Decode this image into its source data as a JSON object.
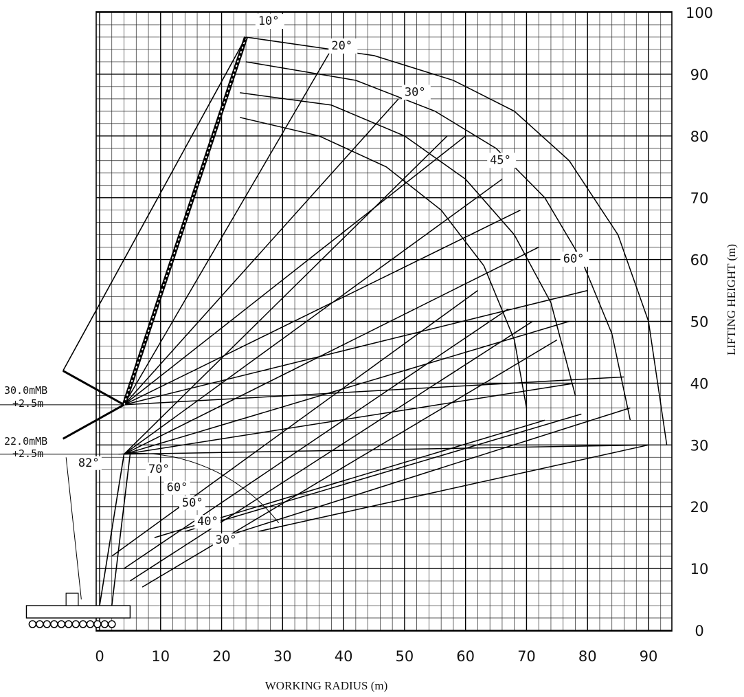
{
  "chart_data": {
    "type": "line",
    "xlabel": "WORKING RADIUS (m)",
    "ylabel": "LIFTING HEIGHT (m)",
    "xlim": [
      -15,
      92
    ],
    "ylim": [
      0,
      100
    ],
    "x_ticks": [
      0,
      10,
      20,
      30,
      40,
      50,
      60,
      70,
      80,
      90
    ],
    "x_tick_labels": [
      "0",
      "10",
      "20",
      "30",
      "40",
      "50",
      "60",
      "70",
      "80",
      "90"
    ],
    "y_ticks": [
      0,
      10,
      20,
      30,
      40,
      50,
      60,
      70,
      80,
      90,
      100
    ],
    "y_tick_labels": [
      "0",
      "10",
      "20",
      "30",
      "40",
      "50",
      "60",
      "70",
      "80",
      "90",
      "100"
    ],
    "grid": true,
    "main_boom_labels": [
      {
        "text": "30.0mMB",
        "height": 36.5
      },
      {
        "text": "+2.5m",
        "height": 36.5
      },
      {
        "text": "22.0mMB",
        "height": 28.5
      },
      {
        "text": "+2.5m",
        "height": 28.5
      }
    ],
    "boom_angle_labels": [
      {
        "text": "82°",
        "x": -3.5,
        "y": 26.5
      },
      {
        "text": "70°",
        "x": 8,
        "y": 25.5
      },
      {
        "text": "60°",
        "x": 11,
        "y": 22.5
      },
      {
        "text": "50°",
        "x": 13.5,
        "y": 20
      },
      {
        "text": "40°",
        "x": 16,
        "y": 17
      },
      {
        "text": "30°",
        "x": 19,
        "y": 14
      }
    ],
    "jib_offset_labels": [
      {
        "text": "10°",
        "x": 26,
        "y": 98
      },
      {
        "text": "20°",
        "x": 38,
        "y": 94
      },
      {
        "text": "30°",
        "x": 50,
        "y": 86.5
      },
      {
        "text": "45°",
        "x": 64,
        "y": 75.5
      },
      {
        "text": "60°",
        "x": 76,
        "y": 59.5
      }
    ],
    "series": [
      {
        "values": [
          [
            24,
            96
          ],
          [
            45,
            93
          ],
          [
            58,
            89
          ],
          [
            68,
            84
          ],
          [
            77,
            76
          ],
          [
            85,
            64
          ],
          [
            90,
            50
          ],
          [
            93,
            30
          ]
        ]
      },
      {
        "values": [
          [
            24,
            92
          ],
          [
            42,
            89
          ],
          [
            55,
            84
          ],
          [
            65,
            78
          ],
          [
            73,
            70
          ],
          [
            79,
            60
          ],
          [
            84,
            48
          ],
          [
            87,
            34
          ]
        ]
      },
      {
        "values": [
          [
            23,
            87
          ],
          [
            38,
            85
          ],
          [
            50,
            80
          ],
          [
            60,
            73
          ],
          [
            68,
            64
          ],
          [
            74,
            53
          ],
          [
            78,
            38
          ]
        ]
      },
      {
        "values": [
          [
            23,
            83
          ],
          [
            36,
            80
          ],
          [
            47,
            75
          ],
          [
            56,
            68
          ],
          [
            63,
            59
          ],
          [
            68,
            47
          ],
          [
            70,
            36
          ]
        ]
      },
      {
        "values": [
          [
            4,
            36.5
          ],
          [
            24,
            96
          ]
        ]
      },
      {
        "values": [
          [
            4,
            36.5
          ],
          [
            38,
            94
          ]
        ]
      },
      {
        "values": [
          [
            4,
            36.5
          ],
          [
            49,
            86
          ]
        ]
      },
      {
        "values": [
          [
            4,
            36.5
          ],
          [
            60,
            80
          ]
        ]
      },
      {
        "values": [
          [
            4,
            36.5
          ],
          [
            69,
            68
          ]
        ]
      },
      {
        "values": [
          [
            4,
            36.5
          ],
          [
            80,
            55
          ]
        ]
      },
      {
        "values": [
          [
            4,
            36.5
          ],
          [
            86,
            41
          ]
        ]
      },
      {
        "values": [
          [
            4,
            28.5
          ],
          [
            57,
            80
          ]
        ]
      },
      {
        "values": [
          [
            4,
            28.5
          ],
          [
            66,
            73
          ]
        ]
      },
      {
        "values": [
          [
            4,
            28.5
          ],
          [
            72,
            62
          ]
        ]
      },
      {
        "values": [
          [
            4,
            28.5
          ],
          [
            77,
            50
          ]
        ]
      },
      {
        "values": [
          [
            4,
            28.5
          ],
          [
            78,
            40
          ]
        ]
      },
      {
        "values": [
          [
            4,
            28.5
          ],
          [
            90,
            30
          ]
        ]
      },
      {
        "values": [
          [
            2,
            12
          ],
          [
            62,
            55
          ]
        ]
      },
      {
        "values": [
          [
            4,
            10
          ],
          [
            67,
            52
          ]
        ]
      },
      {
        "values": [
          [
            5,
            8
          ],
          [
            71,
            50
          ]
        ]
      },
      {
        "values": [
          [
            7,
            7
          ],
          [
            75,
            47
          ]
        ]
      },
      {
        "values": [
          [
            9,
            15
          ],
          [
            73,
            34
          ]
        ]
      },
      {
        "values": [
          [
            14,
            16
          ],
          [
            79,
            35
          ]
        ]
      },
      {
        "values": [
          [
            20,
            15
          ],
          [
            87,
            36
          ]
        ]
      },
      {
        "values": [
          [
            26,
            16
          ],
          [
            90,
            30
          ]
        ]
      }
    ]
  }
}
